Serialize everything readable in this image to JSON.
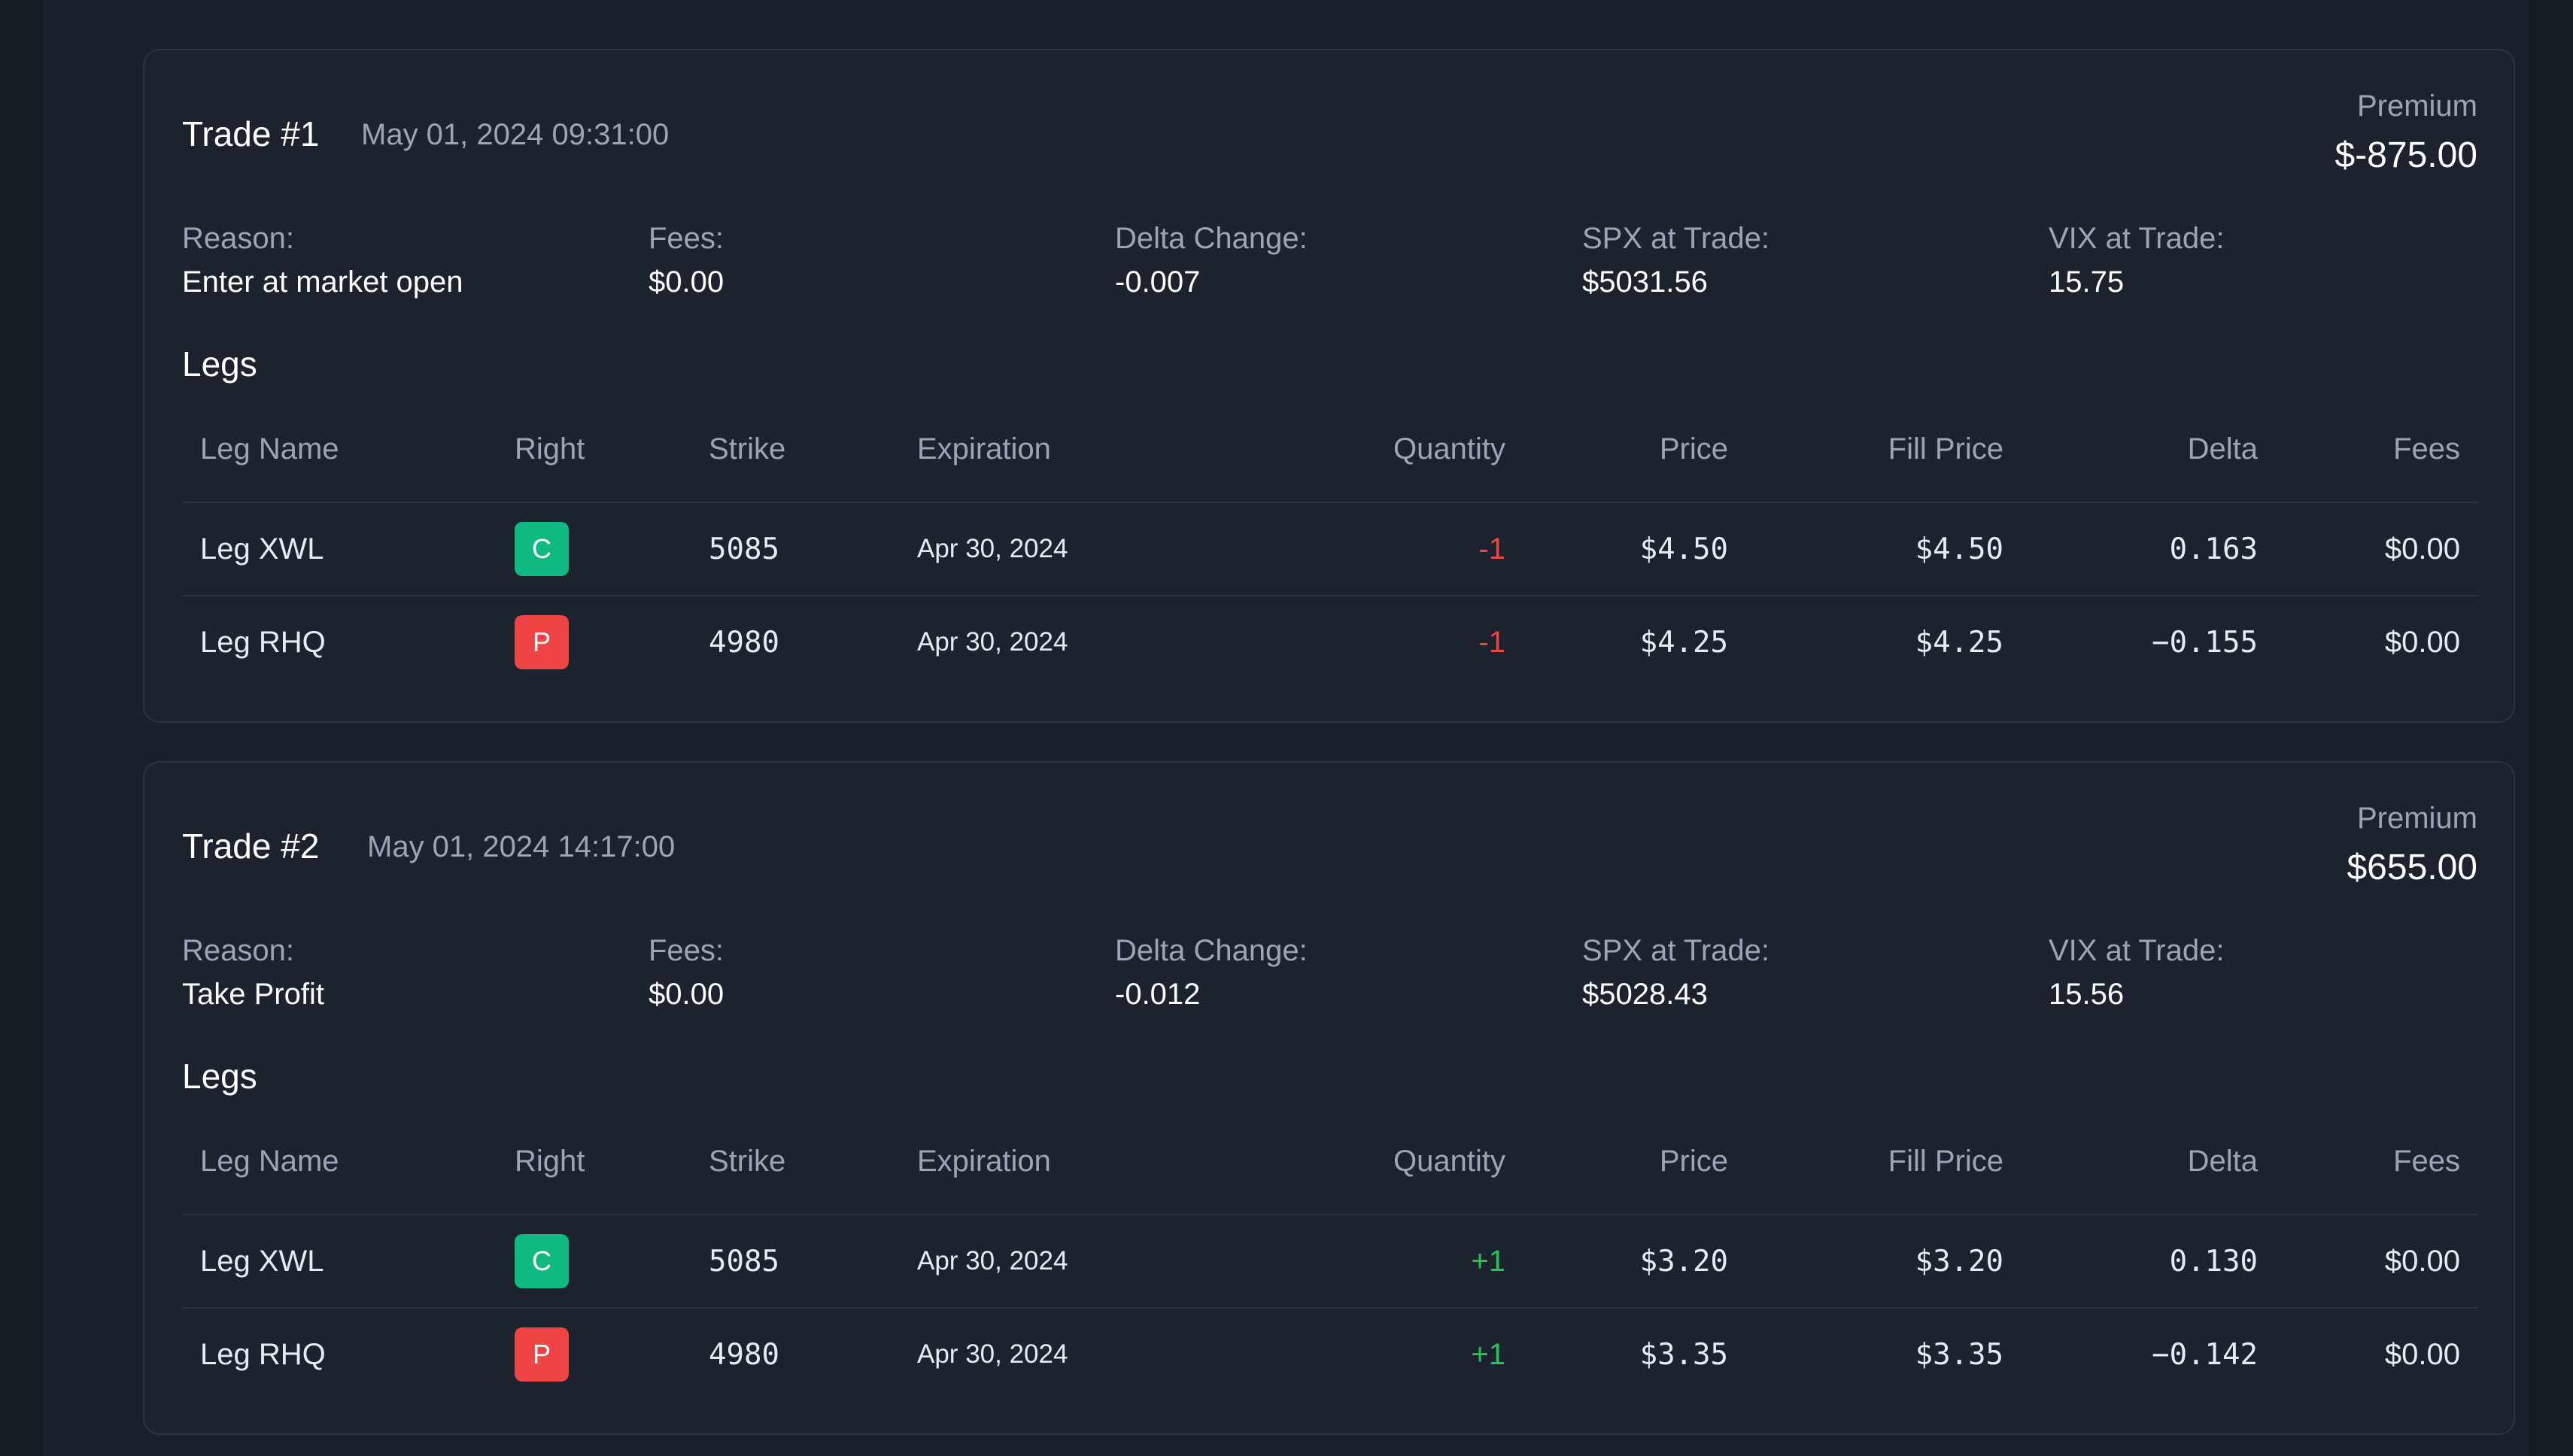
{
  "colors": {
    "background": "#161c24",
    "card": "#1c232e",
    "call_badge": "#10b981",
    "put_badge": "#ef4444",
    "negative": "#ef4444",
    "positive": "#22c55e",
    "muted_text": "#9aa6b5"
  },
  "columns": [
    "Leg Name",
    "Right",
    "Strike",
    "Expiration",
    "Quantity",
    "Price",
    "Fill Price",
    "Delta",
    "Fees"
  ],
  "trades": [
    {
      "title": "Trade #1",
      "datetime": "May 01, 2024 09:31:00",
      "premium_label": "Premium",
      "premium_value": "$-875.00",
      "stats": [
        {
          "label": "Reason:",
          "value": "Enter at market open"
        },
        {
          "label": "Fees:",
          "value": "$0.00"
        },
        {
          "label": "Delta Change:",
          "value": "-0.007"
        },
        {
          "label": "SPX at Trade:",
          "value": "$5031.56"
        },
        {
          "label": "VIX at Trade:",
          "value": "15.75"
        }
      ],
      "legs_heading": "Legs",
      "legs": [
        {
          "name": "Leg XWL",
          "right": "C",
          "strike": "5085",
          "expiration": "Apr 30, 2024",
          "quantity": "-1",
          "price": "$4.50",
          "fill_price": "$4.50",
          "delta": "0.163",
          "fees": "$0.00"
        },
        {
          "name": "Leg RHQ",
          "right": "P",
          "strike": "4980",
          "expiration": "Apr 30, 2024",
          "quantity": "-1",
          "price": "$4.25",
          "fill_price": "$4.25",
          "delta": "−0.155",
          "fees": "$0.00"
        }
      ]
    },
    {
      "title": "Trade #2",
      "datetime": "May 01, 2024 14:17:00",
      "premium_label": "Premium",
      "premium_value": "$655.00",
      "stats": [
        {
          "label": "Reason:",
          "value": "Take Profit"
        },
        {
          "label": "Fees:",
          "value": "$0.00"
        },
        {
          "label": "Delta Change:",
          "value": "-0.012"
        },
        {
          "label": "SPX at Trade:",
          "value": "$5028.43"
        },
        {
          "label": "VIX at Trade:",
          "value": "15.56"
        }
      ],
      "legs_heading": "Legs",
      "legs": [
        {
          "name": "Leg XWL",
          "right": "C",
          "strike": "5085",
          "expiration": "Apr 30, 2024",
          "quantity": "+1",
          "price": "$3.20",
          "fill_price": "$3.20",
          "delta": "0.130",
          "fees": "$0.00"
        },
        {
          "name": "Leg RHQ",
          "right": "P",
          "strike": "4980",
          "expiration": "Apr 30, 2024",
          "quantity": "+1",
          "price": "$3.35",
          "fill_price": "$3.35",
          "delta": "−0.142",
          "fees": "$0.00"
        }
      ]
    }
  ]
}
